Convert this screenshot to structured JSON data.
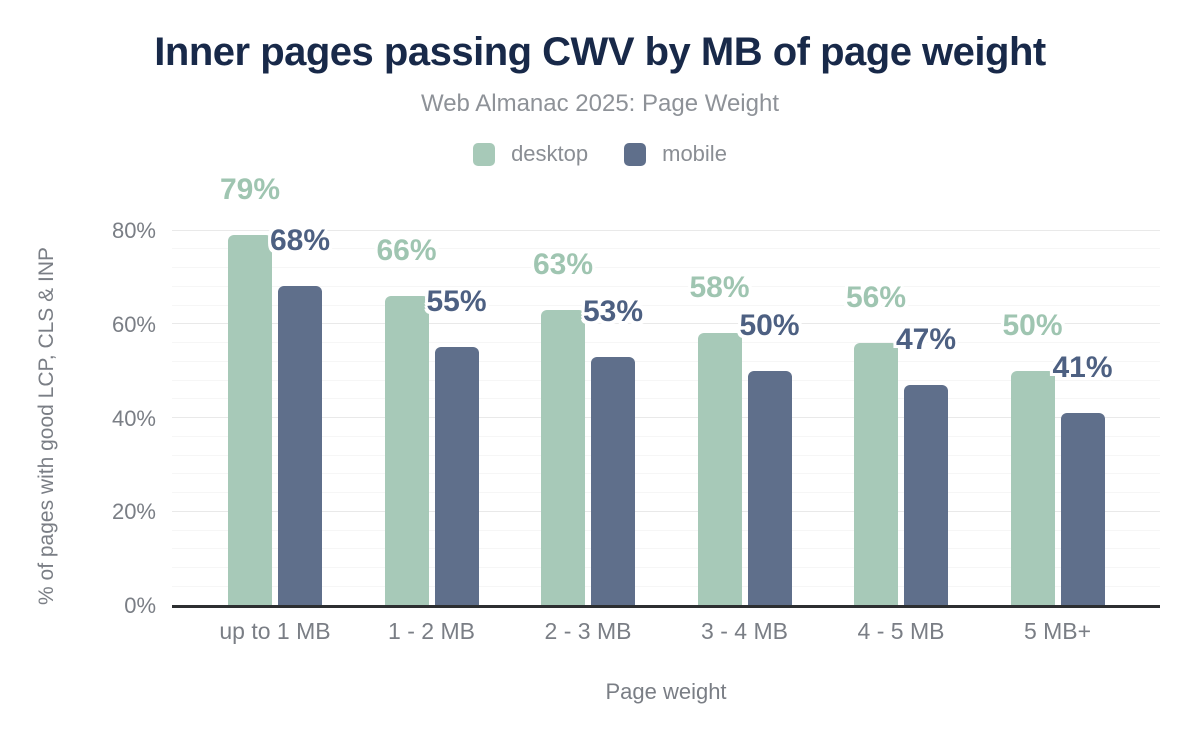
{
  "palette": {
    "background": "#ffffff",
    "title_color": "#182949",
    "desktop_color": "#a7c9b8",
    "desktop_label_color": "#9fc5b1",
    "mobile_color": "#5f6f8b",
    "mobile_label_color": "#4d6082"
  },
  "chart_data": {
    "type": "bar",
    "title": "Inner pages passing CWV by MB of page weight",
    "subtitle": "Web Almanac 2025: Page Weight",
    "xlabel": "Page weight",
    "ylabel": "% of pages with good LCP, CLS & INP",
    "categories": [
      "up to 1 MB",
      "1 - 2 MB",
      "2 - 3 MB",
      "3 - 4 MB",
      "4 - 5 MB",
      "5 MB+"
    ],
    "series": [
      {
        "name": "desktop",
        "color": "#a7c9b8",
        "label_color": "#9fc5b1",
        "values": [
          79,
          66,
          63,
          58,
          56,
          50
        ]
      },
      {
        "name": "mobile",
        "color": "#5f6f8b",
        "label_color": "#4d6082",
        "values": [
          68,
          55,
          53,
          50,
          47,
          41
        ]
      }
    ],
    "value_suffix": "%",
    "ylim": [
      0,
      80
    ],
    "yticks": [
      0,
      20,
      40,
      60,
      80
    ],
    "ytick_suffix": "%",
    "grid": {
      "major_step": 20,
      "minor_step": 4,
      "grid_on": true
    },
    "legend_position": "top",
    "data_labels": true
  }
}
